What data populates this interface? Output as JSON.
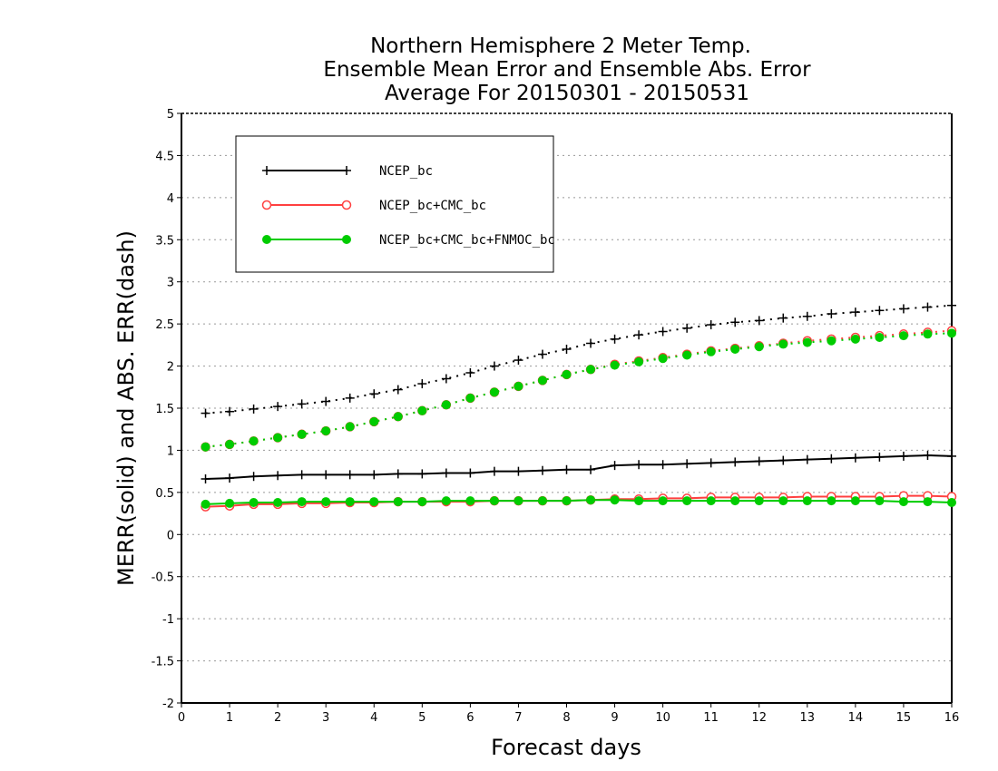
{
  "chart_data": {
    "type": "line",
    "title_lines": [
      "Northern Hemisphere 2 Meter Temp.",
      "Ensemble Mean Error and Ensemble Abs. Error",
      "Average For 20150301 - 20150531"
    ],
    "xlabel": "Forecast days",
    "ylabel": "MERR(solid) and ABS. ERR(dash)",
    "xlim": [
      0,
      16
    ],
    "ylim": [
      -2,
      5
    ],
    "x_ticks": [
      0,
      1,
      2,
      3,
      4,
      5,
      6,
      7,
      8,
      9,
      10,
      11,
      12,
      13,
      14,
      15,
      16
    ],
    "y_ticks": [
      -2,
      -1.5,
      -1,
      -0.5,
      0,
      0.5,
      1,
      1.5,
      2,
      2.5,
      3,
      3.5,
      4,
      4.5,
      5
    ],
    "grid": "dotted horizontal",
    "legend_position": "top-left",
    "x": [
      0.5,
      1,
      1.5,
      2,
      2.5,
      3,
      3.5,
      4,
      4.5,
      5,
      5.5,
      6,
      6.5,
      7,
      7.5,
      8,
      8.5,
      9,
      9.5,
      10,
      10.5,
      11,
      11.5,
      12,
      12.5,
      13,
      13.5,
      14,
      14.5,
      15,
      15.5,
      16
    ],
    "series": [
      {
        "name": "NCEP_bc",
        "color": "#000000",
        "marker": "plus",
        "merr": [
          0.66,
          0.67,
          0.69,
          0.7,
          0.71,
          0.71,
          0.71,
          0.71,
          0.72,
          0.72,
          0.73,
          0.73,
          0.75,
          0.75,
          0.76,
          0.77,
          0.77,
          0.82,
          0.83,
          0.83,
          0.84,
          0.85,
          0.86,
          0.87,
          0.88,
          0.89,
          0.9,
          0.91,
          0.92,
          0.93,
          0.94,
          0.93
        ],
        "abs_err": [
          1.44,
          1.46,
          1.49,
          1.52,
          1.55,
          1.58,
          1.62,
          1.67,
          1.72,
          1.79,
          1.85,
          1.92,
          2.0,
          2.07,
          2.14,
          2.2,
          2.27,
          2.32,
          2.37,
          2.41,
          2.45,
          2.49,
          2.52,
          2.54,
          2.57,
          2.59,
          2.62,
          2.64,
          2.66,
          2.68,
          2.7,
          2.72
        ]
      },
      {
        "name": "NCEP_bc+CMC_bc",
        "color": "#ff4040",
        "marker": "open-circle",
        "merr": [
          0.33,
          0.34,
          0.36,
          0.36,
          0.37,
          0.37,
          0.38,
          0.38,
          0.39,
          0.39,
          0.39,
          0.39,
          0.4,
          0.4,
          0.4,
          0.4,
          0.41,
          0.42,
          0.42,
          0.43,
          0.43,
          0.44,
          0.44,
          0.44,
          0.44,
          0.45,
          0.45,
          0.45,
          0.45,
          0.46,
          0.46,
          0.45
        ],
        "abs_err": [
          1.04,
          1.07,
          1.11,
          1.15,
          1.19,
          1.23,
          1.28,
          1.34,
          1.4,
          1.47,
          1.54,
          1.62,
          1.69,
          1.76,
          1.83,
          1.9,
          1.96,
          2.02,
          2.06,
          2.1,
          2.14,
          2.18,
          2.21,
          2.24,
          2.27,
          2.3,
          2.32,
          2.34,
          2.36,
          2.38,
          2.4,
          2.42
        ]
      },
      {
        "name": "NCEP_bc+CMC_bc+FNMOC_bc",
        "color": "#00cc00",
        "marker": "filled-circle",
        "merr": [
          0.36,
          0.37,
          0.38,
          0.38,
          0.39,
          0.39,
          0.39,
          0.39,
          0.39,
          0.39,
          0.4,
          0.4,
          0.4,
          0.4,
          0.4,
          0.4,
          0.41,
          0.41,
          0.4,
          0.4,
          0.4,
          0.4,
          0.4,
          0.4,
          0.4,
          0.4,
          0.4,
          0.4,
          0.4,
          0.39,
          0.39,
          0.38
        ],
        "abs_err": [
          1.04,
          1.07,
          1.11,
          1.15,
          1.19,
          1.23,
          1.28,
          1.34,
          1.4,
          1.47,
          1.54,
          1.62,
          1.69,
          1.76,
          1.83,
          1.9,
          1.96,
          2.01,
          2.05,
          2.09,
          2.13,
          2.17,
          2.2,
          2.23,
          2.26,
          2.28,
          2.3,
          2.32,
          2.34,
          2.36,
          2.38,
          2.39
        ]
      }
    ]
  }
}
